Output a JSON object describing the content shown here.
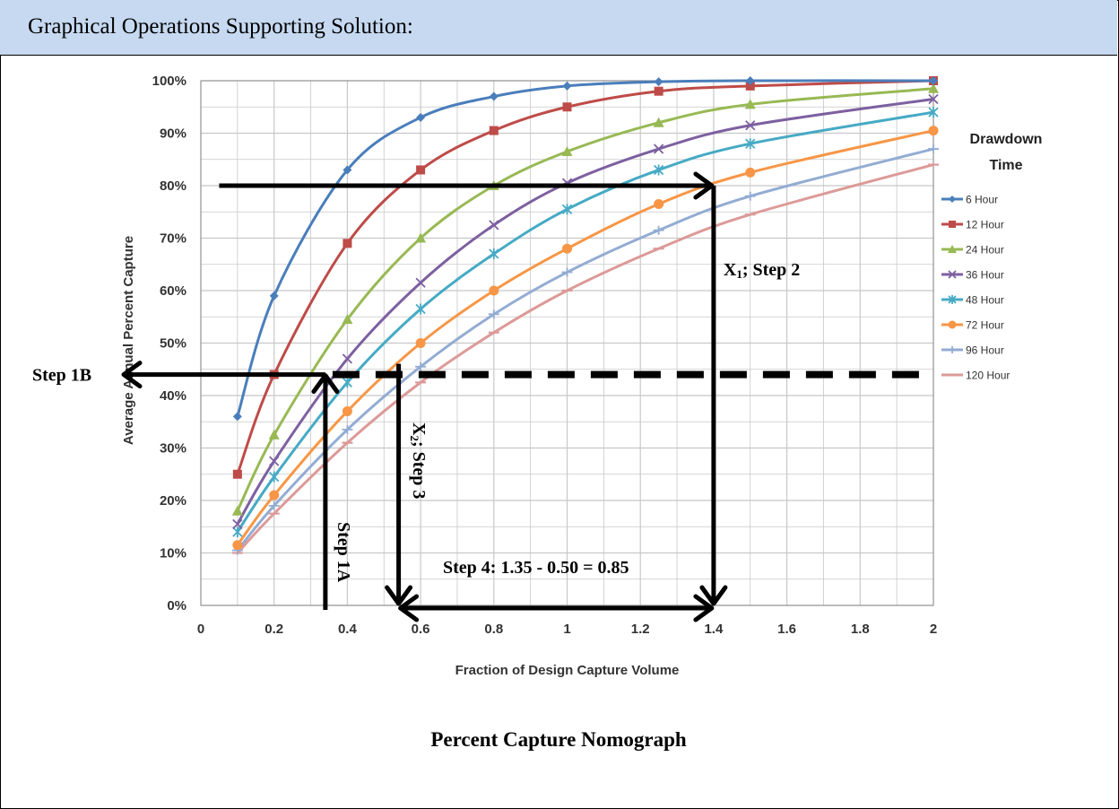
{
  "header": {
    "title": "Graphical Operations Supporting Solution:"
  },
  "caption": "Percent Capture Nomograph",
  "chart_data": {
    "type": "line",
    "xlabel": "Fraction of Design Capture Volume",
    "ylabel": "Average Annual Percent Capture",
    "xlim": [
      0,
      2
    ],
    "ylim": [
      0,
      100
    ],
    "x_ticks": [
      "0",
      "0.2",
      "0.4",
      "0.6",
      "0.8",
      "1",
      "1.2",
      "1.4",
      "1.6",
      "1.8",
      "2"
    ],
    "y_ticks": [
      "0%",
      "10%",
      "20%",
      "30%",
      "40%",
      "50%",
      "60%",
      "70%",
      "80%",
      "90%",
      "100%"
    ],
    "grid": true,
    "legend_title": [
      "Drawdown",
      "Time"
    ],
    "legend_position": "right",
    "x": [
      0.1,
      0.2,
      0.4,
      0.6,
      0.8,
      1.0,
      1.25,
      1.5,
      2.0
    ],
    "series": [
      {
        "name": "6 Hour",
        "color": "#4a7ebb",
        "marker": "diamond",
        "values": [
          36,
          59,
          83,
          93,
          97,
          99,
          99.8,
          100,
          100
        ]
      },
      {
        "name": "12 Hour",
        "color": "#be4b48",
        "marker": "square",
        "values": [
          25,
          44,
          69,
          83,
          90.5,
          95,
          98,
          99,
          100
        ]
      },
      {
        "name": "24 Hour",
        "color": "#98b954",
        "marker": "triangle",
        "values": [
          18,
          32.5,
          54.5,
          70,
          80,
          86.5,
          92,
          95.5,
          98.5
        ]
      },
      {
        "name": "36 Hour",
        "color": "#7d60a0",
        "marker": "x",
        "values": [
          15.5,
          27.5,
          47,
          61.5,
          72.5,
          80.5,
          87,
          91.5,
          96.5
        ]
      },
      {
        "name": "48 Hour",
        "color": "#46aac5",
        "marker": "asterisk",
        "values": [
          14,
          24.5,
          42.5,
          56.5,
          67,
          75.5,
          83,
          88,
          94
        ]
      },
      {
        "name": "72 Hour",
        "color": "#f79646",
        "marker": "circle",
        "values": [
          11.5,
          21,
          37,
          50,
          60,
          68,
          76.5,
          82.5,
          90.5
        ]
      },
      {
        "name": "96 Hour",
        "color": "#93acd3",
        "marker": "plus",
        "values": [
          10.5,
          19,
          33.5,
          45.5,
          55.5,
          63.5,
          71.5,
          78,
          87
        ]
      },
      {
        "name": "120 Hour",
        "color": "#dc9a98",
        "marker": "dash",
        "values": [
          10,
          17.5,
          31,
          42.5,
          52,
          60,
          68,
          74.5,
          84
        ]
      }
    ],
    "annotations": {
      "step_1a": {
        "label": "Step 1A",
        "x": 0.34,
        "y_from": 0,
        "y_to": 44
      },
      "step_1b": {
        "label": "Step 1B",
        "y": 44,
        "x_to": -0.2
      },
      "dashed_level": {
        "y": 44,
        "x_from": 0.34,
        "x_to": 2.0
      },
      "top_arrow": {
        "y": 80,
        "x_from": 0.05,
        "x_to": 1.4
      },
      "x1": {
        "label_main": "X",
        "label_sub": "1",
        "label_rest": "; Step 2",
        "x": 1.4,
        "y_from": 80,
        "y_to": 0
      },
      "x2": {
        "label_main": "X",
        "label_sub": "2",
        "label_rest": "; Step 3",
        "x": 0.54,
        "y_from": 44,
        "y_to": 0
      },
      "step_4": {
        "label": "Step 4: 1.35 - 0.50 = 0.85",
        "y": 0,
        "x_from": 0.54,
        "x_to": 1.4
      }
    }
  }
}
